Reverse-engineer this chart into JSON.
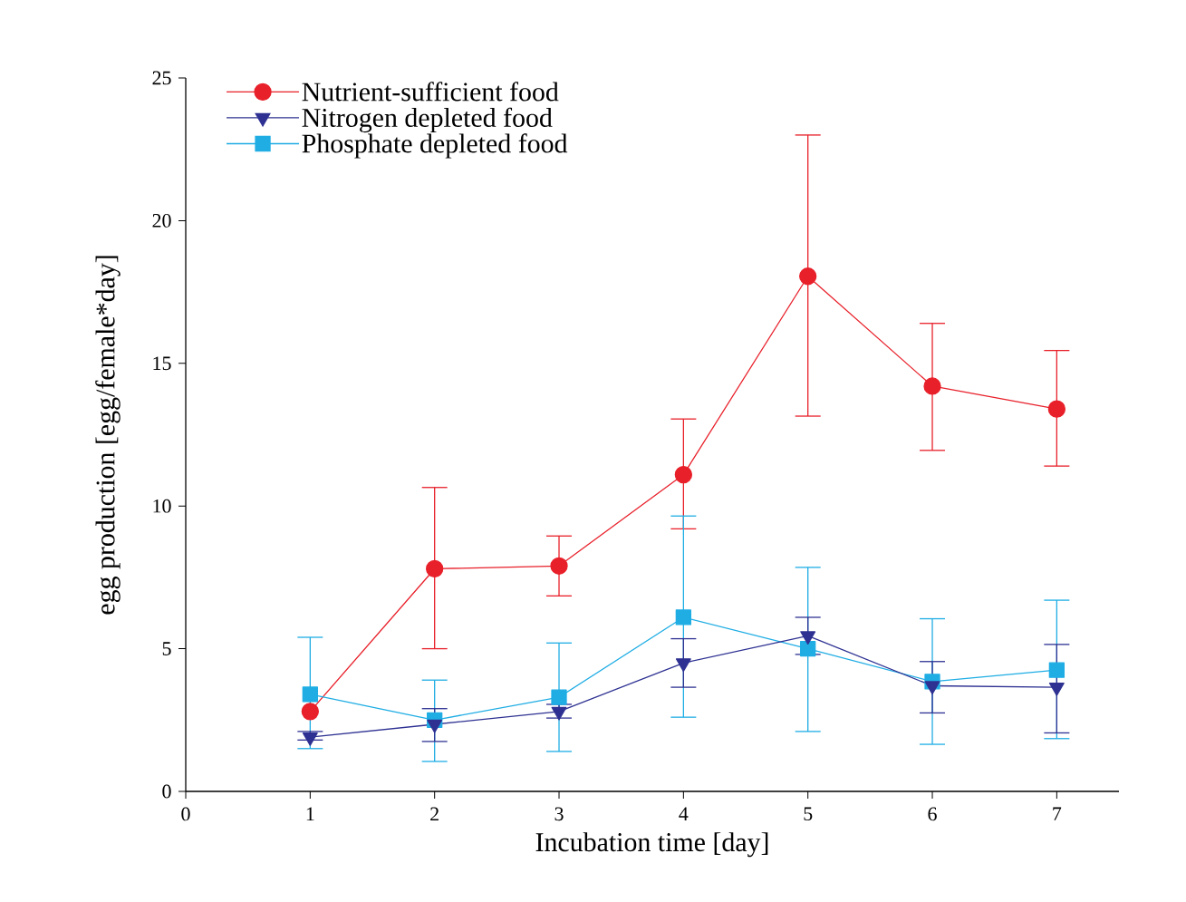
{
  "chart_data": {
    "type": "line",
    "xlabel": "Incubation time [day]",
    "ylabel": "egg production [egg/female*day]",
    "x": [
      1,
      2,
      3,
      4,
      5,
      6,
      7
    ],
    "series": [
      {
        "name": "Nutrient-sufficient food",
        "color": "#e8202a",
        "marker": "circle",
        "values": [
          2.8,
          7.8,
          7.9,
          11.1,
          18.05,
          14.2,
          13.4
        ],
        "errors": [
          null,
          [
            5.0,
            10.65
          ],
          [
            6.85,
            8.95
          ],
          [
            9.2,
            13.05
          ],
          [
            13.15,
            23.0
          ],
          [
            11.95,
            16.4
          ],
          [
            11.4,
            15.45
          ]
        ]
      },
      {
        "name": "Nitrogen depleted food",
        "color": "#2e3192",
        "marker": "triangle",
        "values": [
          1.9,
          2.35,
          2.8,
          4.5,
          5.45,
          3.7,
          3.65
        ],
        "errors": [
          [
            1.8,
            2.1
          ],
          [
            1.75,
            2.9
          ],
          [
            2.57,
            3.05
          ],
          [
            3.65,
            5.35
          ],
          [
            4.8,
            6.1
          ],
          [
            2.75,
            4.55
          ],
          [
            2.05,
            5.15
          ]
        ]
      },
      {
        "name": "Phosphate depleted food",
        "color": "#1fade4",
        "marker": "square",
        "values": [
          3.4,
          2.5,
          3.3,
          6.1,
          5.0,
          3.85,
          4.25
        ],
        "errors": [
          [
            1.5,
            5.4
          ],
          [
            1.05,
            3.9
          ],
          [
            1.4,
            5.2
          ],
          [
            2.6,
            9.65
          ],
          [
            2.1,
            7.85
          ],
          [
            1.65,
            6.05
          ],
          [
            1.85,
            6.7
          ]
        ]
      }
    ],
    "xlim": [
      0,
      7.5
    ],
    "ylim": [
      0,
      25
    ],
    "xticks": [
      0,
      1,
      2,
      3,
      4,
      5,
      6,
      7
    ],
    "yticks": [
      0,
      5,
      10,
      15,
      20,
      25
    ],
    "grid": false,
    "legend": "top left",
    "line_style": "solid"
  }
}
